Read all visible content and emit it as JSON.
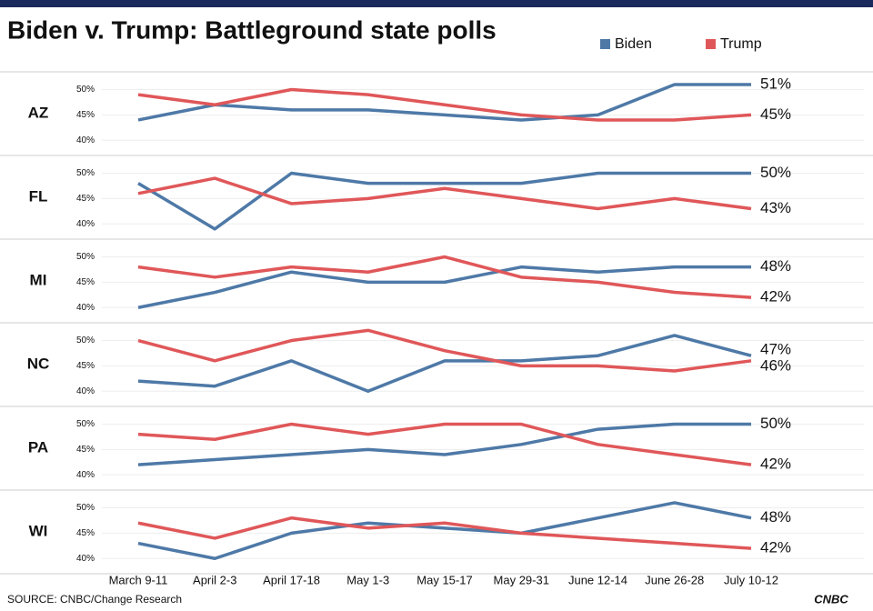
{
  "title": "Biden v. Trump: Battleground state polls",
  "source": "SOURCE: CNBC/Change Research",
  "logo": "CNBC",
  "chart_data": {
    "type": "line",
    "categories": [
      "March 9-11",
      "April 2-3",
      "April 17-18",
      "May 1-3",
      "May 15-17",
      "May 29-31",
      "June 12-14",
      "June 26-28",
      "July 10-12"
    ],
    "legend": [
      {
        "name": "Biden",
        "color": "#4e79a7"
      },
      {
        "name": "Trump",
        "color": "#e05759"
      }
    ],
    "ylim": [
      37,
      53.5
    ],
    "yticks": [
      {
        "value": 40,
        "label": "40%"
      },
      {
        "value": 45,
        "label": "45%"
      },
      {
        "value": 50,
        "label": "50%"
      }
    ],
    "grid": true,
    "panels": [
      {
        "label": "AZ",
        "series": [
          {
            "values": [
              44,
              47,
              46,
              46,
              45,
              44,
              45,
              51,
              51
            ],
            "value_labels": [
              null,
              null,
              null,
              null,
              null,
              null,
              null,
              null,
              "51%"
            ]
          },
          {
            "values": [
              49,
              47,
              50,
              49,
              47,
              45,
              44,
              44,
              45
            ],
            "value_labels": [
              null,
              null,
              null,
              null,
              null,
              null,
              null,
              null,
              "45%"
            ]
          }
        ]
      },
      {
        "label": "FL",
        "series": [
          {
            "values": [
              48,
              39,
              50,
              48,
              48,
              48,
              50,
              50,
              50
            ],
            "value_labels": [
              null,
              null,
              null,
              null,
              null,
              null,
              null,
              null,
              "50%"
            ]
          },
          {
            "values": [
              46,
              49,
              44,
              45,
              47,
              45,
              43,
              45,
              43
            ],
            "value_labels": [
              null,
              null,
              null,
              null,
              null,
              null,
              null,
              null,
              "43%"
            ]
          }
        ]
      },
      {
        "label": "MI",
        "series": [
          {
            "values": [
              40,
              43,
              47,
              45,
              45,
              48,
              47,
              48,
              48
            ],
            "value_labels": [
              null,
              null,
              null,
              null,
              null,
              null,
              null,
              null,
              "48%"
            ]
          },
          {
            "values": [
              48,
              46,
              48,
              47,
              50,
              46,
              45,
              43,
              42
            ],
            "value_labels": [
              null,
              null,
              null,
              null,
              null,
              null,
              null,
              null,
              "42%"
            ]
          }
        ]
      },
      {
        "label": "NC",
        "series": [
          {
            "values": [
              42,
              41,
              46,
              40,
              46,
              46,
              47,
              51,
              47
            ],
            "value_labels": [
              null,
              null,
              null,
              null,
              null,
              null,
              null,
              null,
              "47%"
            ]
          },
          {
            "values": [
              50,
              46,
              50,
              52,
              48,
              45,
              45,
              44,
              46
            ],
            "value_labels": [
              null,
              null,
              null,
              null,
              null,
              null,
              null,
              null,
              "46%"
            ]
          }
        ]
      },
      {
        "label": "PA",
        "series": [
          {
            "values": [
              42,
              43,
              44,
              45,
              44,
              46,
              49,
              50,
              50
            ],
            "value_labels": [
              null,
              null,
              null,
              null,
              null,
              null,
              null,
              null,
              "50%"
            ]
          },
          {
            "values": [
              48,
              47,
              50,
              48,
              50,
              50,
              46,
              44,
              42
            ],
            "value_labels": [
              null,
              null,
              null,
              null,
              null,
              null,
              null,
              null,
              "42%"
            ]
          }
        ]
      },
      {
        "label": "WI",
        "series": [
          {
            "values": [
              43,
              40,
              45,
              47,
              46,
              45,
              48,
              51,
              48
            ],
            "value_labels": [
              null,
              null,
              null,
              null,
              null,
              null,
              null,
              null,
              "48%"
            ]
          },
          {
            "values": [
              47,
              44,
              48,
              46,
              47,
              45,
              44,
              43,
              42
            ],
            "value_labels": [
              null,
              null,
              null,
              null,
              null,
              null,
              null,
              null,
              "42%"
            ]
          }
        ]
      }
    ]
  }
}
